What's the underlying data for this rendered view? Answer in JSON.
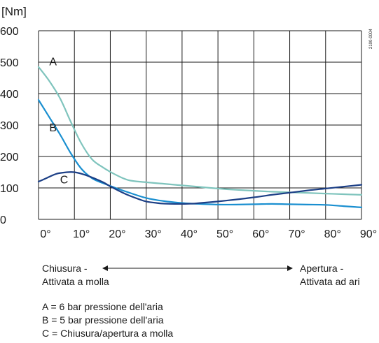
{
  "chart_data": {
    "type": "line",
    "ylabel": "[Nm]",
    "xlabel": "",
    "xlim": [
      0,
      90
    ],
    "ylim": [
      0,
      600
    ],
    "xticks": [
      0,
      10,
      20,
      30,
      40,
      50,
      60,
      70,
      80,
      90
    ],
    "xtick_labels": [
      "0°",
      "10°",
      "20°",
      "30°",
      "40°",
      "50°",
      "60°",
      "70°",
      "80°",
      "90°"
    ],
    "yticks": [
      0,
      100,
      200,
      300,
      400,
      500,
      600
    ],
    "ytick_labels": [
      "0",
      "100",
      "200",
      "300",
      "400",
      "500",
      "600"
    ],
    "grid": true,
    "legend": "inline labels",
    "watermark": "2100-0004",
    "series": [
      {
        "name": "A",
        "color": "#7fc4bd",
        "x": [
          0,
          3,
          6,
          9,
          12,
          15,
          18,
          21,
          25,
          30,
          35,
          40,
          45,
          50,
          55,
          60,
          65,
          70,
          75,
          80,
          85,
          90
        ],
        "y": [
          485,
          440,
          385,
          310,
          240,
          190,
          165,
          145,
          125,
          118,
          113,
          108,
          103,
          98,
          94,
          91,
          88,
          86,
          84,
          82,
          80,
          78
        ]
      },
      {
        "name": "B",
        "color": "#1a8fd0",
        "x": [
          0,
          3,
          6,
          9,
          12,
          15,
          18,
          21,
          25,
          30,
          35,
          40,
          45,
          50,
          55,
          60,
          65,
          70,
          75,
          80,
          85,
          90
        ],
        "y": [
          380,
          325,
          270,
          210,
          160,
          130,
          115,
          102,
          86,
          68,
          58,
          52,
          49,
          47,
          47,
          48,
          49,
          48,
          47,
          46,
          42,
          38
        ]
      },
      {
        "name": "C",
        "color": "#1c3f86",
        "x": [
          0,
          2,
          5,
          8,
          10,
          12,
          15,
          18,
          20,
          22,
          25,
          28,
          30,
          33,
          35,
          38,
          40,
          43,
          45,
          50,
          55,
          60,
          65,
          70,
          75,
          80,
          85,
          90
        ],
        "y": [
          120,
          130,
          145,
          150,
          150,
          145,
          133,
          118,
          105,
          93,
          77,
          64,
          57,
          52,
          50,
          49,
          49,
          50,
          52,
          57,
          63,
          70,
          78,
          85,
          92,
          98,
          104,
          110
        ]
      }
    ]
  },
  "direction": {
    "left_line1": "Chiusura -",
    "left_line2": "Attivata a molla",
    "right_line1": "Apertura -",
    "right_line2": "Attivata ad ari"
  },
  "notes": [
    "A = 6 bar pressione dell'aria",
    "B = 5 bar pressione dell'aria",
    "C = Chiusura/apertura a molla"
  ]
}
